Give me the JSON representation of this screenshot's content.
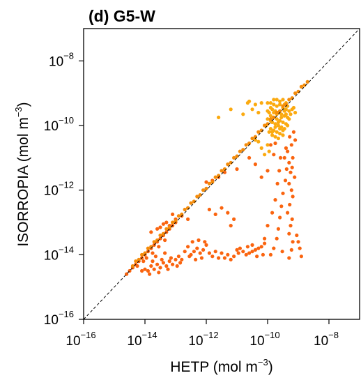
{
  "chart_data": {
    "type": "scatter",
    "title": "(d) G5-W",
    "xlabel": {
      "main": "HETP (mol m",
      "sup": "−3",
      "close": ")"
    },
    "ylabel": {
      "main": "ISORROPIA (mol m",
      "sup": "−3",
      "close": ")"
    },
    "x_scale": "log",
    "y_scale": "log",
    "xlim": [
      1e-16,
      1e-07
    ],
    "ylim": [
      1e-16,
      1e-07
    ],
    "x_ticks": [
      {
        "value": 1e-16,
        "base": "10",
        "exp": "−16"
      },
      {
        "value": 1e-14,
        "base": "10",
        "exp": "−14"
      },
      {
        "value": 1e-12,
        "base": "10",
        "exp": "−12"
      },
      {
        "value": 1e-10,
        "base": "10",
        "exp": "−10"
      },
      {
        "value": 1e-08,
        "base": "10",
        "exp": "−8"
      }
    ],
    "y_ticks": [
      {
        "value": 1e-16,
        "base": "10",
        "exp": "−16"
      },
      {
        "value": 1e-14,
        "base": "10",
        "exp": "−14"
      },
      {
        "value": 1e-12,
        "base": "10",
        "exp": "−12"
      },
      {
        "value": 1e-10,
        "base": "10",
        "exp": "−10"
      },
      {
        "value": 1e-08,
        "base": "10",
        "exp": "−8"
      }
    ],
    "reference_line": {
      "type": "1:1",
      "style": "dashed",
      "color": "#000000"
    },
    "grid": false,
    "colors": {
      "orange_red": "#fa640f",
      "light_orange": "#fbaa10",
      "amber": "#f58c0a"
    },
    "series": [
      {
        "color": "#fa640f",
        "points": [
          [
            -9.28,
            -10.35
          ],
          [
            -9.22,
            -10.6
          ],
          [
            -9.35,
            -10.8
          ],
          [
            -9.18,
            -11.0
          ],
          [
            -9.3,
            -11.15
          ],
          [
            -9.2,
            -11.3
          ],
          [
            -9.25,
            -11.45
          ],
          [
            -9.12,
            -11.6
          ],
          [
            -9.3,
            -11.8
          ],
          [
            -9.22,
            -12.0
          ],
          [
            -9.18,
            -12.2
          ],
          [
            -9.28,
            -12.45
          ],
          [
            -9.35,
            -12.7
          ],
          [
            -9.2,
            -12.9
          ],
          [
            -9.25,
            -13.1
          ],
          [
            -9.3,
            -13.35
          ],
          [
            -9.18,
            -13.6
          ],
          [
            -9.22,
            -13.85
          ],
          [
            -9.4,
            -10.7
          ],
          [
            -9.45,
            -11.0
          ],
          [
            -9.15,
            -10.2
          ],
          [
            -9.1,
            -10.45
          ],
          [
            -9.38,
            -11.35
          ],
          [
            -9.42,
            -11.7
          ],
          [
            -9.5,
            -12.1
          ],
          [
            -9.55,
            -12.5
          ],
          [
            -9.6,
            -12.85
          ],
          [
            -9.65,
            -13.2
          ],
          [
            -9.7,
            -13.5
          ],
          [
            -9.8,
            -13.8
          ],
          [
            -9.9,
            -14.0
          ],
          [
            -9.58,
            -11.0
          ],
          [
            -9.62,
            -11.4
          ],
          [
            -9.68,
            -11.8
          ],
          [
            -9.75,
            -12.3
          ],
          [
            -9.85,
            -12.7
          ],
          [
            -10.0,
            -13.1
          ],
          [
            -10.1,
            -13.5
          ],
          [
            -9.52,
            -13.9
          ],
          [
            -9.3,
            -14.1
          ],
          [
            -9.0,
            -13.6
          ],
          [
            -8.95,
            -13.8
          ],
          [
            -8.9,
            -14.05
          ],
          [
            -9.05,
            -13.4
          ],
          [
            -10.1,
            -13.65
          ],
          [
            -10.2,
            -13.75
          ],
          [
            -10.3,
            -13.8
          ],
          [
            -10.4,
            -13.85
          ],
          [
            -10.5,
            -13.9
          ],
          [
            -10.6,
            -13.95
          ],
          [
            -10.7,
            -14.0
          ],
          [
            -10.8,
            -13.9
          ],
          [
            -10.9,
            -13.8
          ],
          [
            -10.95,
            -13.95
          ],
          [
            -10.5,
            -13.7
          ],
          [
            -10.35,
            -14.05
          ],
          [
            -10.15,
            -14.0
          ],
          [
            -10.65,
            -13.75
          ],
          [
            -11.3,
            -12.7
          ],
          [
            -11.5,
            -12.55
          ],
          [
            -11.7,
            -12.75
          ],
          [
            -11.9,
            -12.6
          ],
          [
            -11.1,
            -12.9
          ],
          [
            -11.2,
            -13.1
          ],
          [
            -12.0,
            -13.7
          ],
          [
            -12.1,
            -13.85
          ],
          [
            -12.2,
            -13.95
          ],
          [
            -12.3,
            -13.8
          ],
          [
            -12.4,
            -13.9
          ],
          [
            -12.5,
            -14.0
          ],
          [
            -12.6,
            -13.75
          ],
          [
            -12.7,
            -13.9
          ],
          [
            -12.15,
            -14.1
          ],
          [
            -12.35,
            -14.15
          ],
          [
            -12.55,
            -14.05
          ],
          [
            -11.9,
            -13.95
          ],
          [
            -11.8,
            -14.05
          ],
          [
            -11.7,
            -13.9
          ],
          [
            -11.6,
            -14.1
          ],
          [
            -11.5,
            -13.95
          ],
          [
            -11.4,
            -14.1
          ],
          [
            -11.3,
            -14.0
          ],
          [
            -11.2,
            -14.15
          ],
          [
            -11.1,
            -14.05
          ],
          [
            -11.0,
            -13.85
          ],
          [
            -12.8,
            -14.15
          ],
          [
            -12.9,
            -14.05
          ],
          [
            -12.45,
            -13.6
          ],
          [
            -12.25,
            -13.55
          ],
          [
            -12.05,
            -13.6
          ],
          [
            -13.0,
            -12.9
          ],
          [
            -13.2,
            -13.1
          ],
          [
            -13.4,
            -13.05
          ],
          [
            -13.6,
            -13.2
          ],
          [
            -13.8,
            -13.3
          ],
          [
            -12.8,
            -12.8
          ],
          [
            -12.6,
            -12.9
          ],
          [
            -13.1,
            -12.75
          ],
          [
            -13.3,
            -13.0
          ],
          [
            -13.5,
            -13.15
          ],
          [
            -13.0,
            -14.15
          ],
          [
            -13.1,
            -14.3
          ],
          [
            -13.2,
            -14.2
          ],
          [
            -13.3,
            -14.35
          ],
          [
            -13.4,
            -14.25
          ],
          [
            -13.5,
            -14.4
          ],
          [
            -13.6,
            -14.3
          ],
          [
            -13.7,
            -14.45
          ],
          [
            -13.8,
            -14.35
          ],
          [
            -13.9,
            -14.5
          ],
          [
            -14.0,
            -14.45
          ],
          [
            -14.1,
            -14.5
          ],
          [
            -13.15,
            -14.1
          ],
          [
            -13.45,
            -14.15
          ],
          [
            -13.75,
            -14.2
          ],
          [
            -12.95,
            -14.35
          ],
          [
            -13.25,
            -14.45
          ],
          [
            -13.55,
            -14.55
          ],
          [
            -13.85,
            -14.6
          ],
          [
            -12.85,
            -14.25
          ],
          [
            -13.65,
            -14.05
          ],
          [
            -13.35,
            -13.95
          ],
          [
            -14.2,
            -14.2
          ],
          [
            -14.3,
            -14.3
          ],
          [
            -14.4,
            -14.4
          ],
          [
            -14.5,
            -14.5
          ],
          [
            -14.6,
            -14.6
          ],
          [
            -14.1,
            -14.1
          ],
          [
            -14.0,
            -14.0
          ],
          [
            -13.9,
            -13.9
          ],
          [
            -13.8,
            -13.8
          ],
          [
            -13.7,
            -13.7
          ],
          [
            -13.6,
            -13.6
          ],
          [
            -13.5,
            -13.5
          ],
          [
            -13.4,
            -13.4
          ],
          [
            -13.3,
            -13.3
          ],
          [
            -13.2,
            -13.2
          ],
          [
            -13.1,
            -13.1
          ],
          [
            -13.0,
            -13.0
          ],
          [
            -14.25,
            -14.35
          ],
          [
            -14.05,
            -14.2
          ],
          [
            -13.95,
            -14.1
          ],
          [
            -13.75,
            -13.95
          ],
          [
            -13.55,
            -13.75
          ],
          [
            -13.35,
            -13.55
          ],
          [
            -12.0,
            -11.75
          ],
          [
            -11.8,
            -11.7
          ],
          [
            -11.6,
            -11.6
          ],
          [
            -11.4,
            -11.45
          ],
          [
            -11.0,
            -11.35
          ],
          [
            -10.6,
            -11.0
          ],
          [
            -10.4,
            -11.2
          ],
          [
            -10.2,
            -11.6
          ],
          [
            -10.0,
            -11.4
          ],
          [
            -9.9,
            -10.6
          ],
          [
            -9.8,
            -10.9
          ],
          [
            -9.75,
            -10.55
          ]
        ]
      },
      {
        "color": "#fbaa10",
        "points": [
          [
            -9.9,
            -9.3
          ],
          [
            -9.8,
            -9.35
          ],
          [
            -9.7,
            -9.4
          ],
          [
            -9.6,
            -9.35
          ],
          [
            -9.5,
            -9.45
          ],
          [
            -9.4,
            -9.5
          ],
          [
            -9.3,
            -9.55
          ],
          [
            -9.85,
            -9.5
          ],
          [
            -9.75,
            -9.55
          ],
          [
            -9.65,
            -9.6
          ],
          [
            -9.55,
            -9.65
          ],
          [
            -9.45,
            -9.7
          ],
          [
            -9.35,
            -9.75
          ],
          [
            -9.9,
            -9.7
          ],
          [
            -9.8,
            -9.75
          ],
          [
            -9.7,
            -9.8
          ],
          [
            -9.6,
            -9.85
          ],
          [
            -9.5,
            -9.9
          ],
          [
            -9.4,
            -9.95
          ],
          [
            -9.85,
            -9.9
          ],
          [
            -9.75,
            -9.95
          ],
          [
            -9.65,
            -10.0
          ],
          [
            -9.55,
            -10.05
          ],
          [
            -9.45,
            -10.1
          ],
          [
            -9.9,
            -10.1
          ],
          [
            -9.8,
            -10.15
          ],
          [
            -9.7,
            -10.2
          ],
          [
            -9.6,
            -10.25
          ],
          [
            -9.5,
            -10.3
          ],
          [
            -9.85,
            -10.3
          ],
          [
            -9.75,
            -10.35
          ],
          [
            -9.65,
            -10.4
          ],
          [
            -9.95,
            -9.6
          ],
          [
            -10.0,
            -9.8
          ],
          [
            -10.05,
            -10.0
          ],
          [
            -9.95,
            -10.2
          ],
          [
            -9.3,
            -9.8
          ],
          [
            -9.35,
            -10.0
          ],
          [
            -9.25,
            -9.65
          ],
          [
            -9.2,
            -9.5
          ],
          [
            -9.6,
            -9.25
          ],
          [
            -9.7,
            -9.2
          ],
          [
            -9.5,
            -9.2
          ],
          [
            -9.4,
            -9.3
          ],
          [
            -9.8,
            -9.2
          ],
          [
            -9.9,
            -9.45
          ],
          [
            -10.0,
            -9.55
          ],
          [
            -9.45,
            -9.55
          ],
          [
            -9.55,
            -9.75
          ],
          [
            -9.65,
            -9.9
          ],
          [
            -9.75,
            -10.05
          ],
          [
            -9.85,
            -10.2
          ],
          [
            -9.4,
            -9.65
          ],
          [
            -9.5,
            -10.15
          ],
          [
            -9.6,
            -10.1
          ],
          [
            -9.7,
            -9.65
          ],
          [
            -9.8,
            -9.6
          ],
          [
            -9.9,
            -9.85
          ],
          [
            -9.35,
            -9.4
          ],
          [
            -9.45,
            -9.35
          ],
          [
            -10.6,
            -9.25
          ],
          [
            -10.65,
            -9.3
          ],
          [
            -10.4,
            -9.35
          ],
          [
            -10.2,
            -9.3
          ],
          [
            -10.0,
            -9.3
          ],
          [
            -10.5,
            -9.5
          ],
          [
            -10.3,
            -9.6
          ],
          [
            -11.6,
            -9.75
          ],
          [
            -11.2,
            -9.5
          ],
          [
            -10.8,
            -9.65
          ],
          [
            -9.15,
            -9.45
          ],
          [
            -9.1,
            -9.6
          ],
          [
            -10.3,
            -10.5
          ],
          [
            -10.0,
            -10.6
          ],
          [
            -9.95,
            -10.8
          ],
          [
            -10.1,
            -10.9
          ],
          [
            -10.2,
            -10.7
          ],
          [
            -10.4,
            -10.45
          ]
        ]
      },
      {
        "color": "#f58c0a",
        "points": [
          [
            -14.4,
            -14.35
          ],
          [
            -14.2,
            -14.15
          ],
          [
            -14.0,
            -13.95
          ],
          [
            -13.8,
            -13.75
          ],
          [
            -13.6,
            -13.55
          ],
          [
            -13.4,
            -13.35
          ],
          [
            -13.2,
            -13.15
          ],
          [
            -13.0,
            -12.95
          ],
          [
            -12.8,
            -12.75
          ],
          [
            -12.6,
            -12.55
          ],
          [
            -12.4,
            -12.35
          ],
          [
            -12.2,
            -12.15
          ],
          [
            -12.0,
            -11.95
          ],
          [
            -11.8,
            -11.75
          ],
          [
            -11.6,
            -11.55
          ],
          [
            -11.4,
            -11.35
          ],
          [
            -11.2,
            -11.15
          ],
          [
            -11.0,
            -10.95
          ],
          [
            -10.8,
            -10.75
          ],
          [
            -10.6,
            -10.55
          ],
          [
            -10.4,
            -10.35
          ],
          [
            -10.2,
            -10.15
          ],
          [
            -10.0,
            -9.95
          ],
          [
            -9.8,
            -9.75
          ],
          [
            -9.6,
            -9.55
          ],
          [
            -9.4,
            -9.35
          ],
          [
            -9.2,
            -9.15
          ],
          [
            -9.0,
            -8.95
          ],
          [
            -8.8,
            -8.75
          ],
          [
            -8.7,
            -8.65
          ],
          [
            -14.3,
            -14.2
          ],
          [
            -14.1,
            -14.0
          ],
          [
            -13.9,
            -13.8
          ],
          [
            -13.7,
            -13.6
          ],
          [
            -13.5,
            -13.4
          ],
          [
            -13.3,
            -13.2
          ],
          [
            -13.1,
            -13.0
          ],
          [
            -12.9,
            -12.8
          ],
          [
            -12.7,
            -12.6
          ],
          [
            -12.5,
            -12.4
          ],
          [
            -12.3,
            -12.2
          ],
          [
            -12.1,
            -12.0
          ],
          [
            -11.9,
            -11.8
          ],
          [
            -11.7,
            -11.6
          ],
          [
            -11.5,
            -11.4
          ],
          [
            -11.3,
            -11.2
          ],
          [
            -11.1,
            -11.0
          ],
          [
            -10.9,
            -10.8
          ],
          [
            -10.7,
            -10.6
          ],
          [
            -10.5,
            -10.4
          ],
          [
            -10.3,
            -10.2
          ],
          [
            -10.1,
            -10.0
          ],
          [
            -9.9,
            -9.8
          ],
          [
            -9.7,
            -9.6
          ],
          [
            -9.5,
            -9.4
          ],
          [
            -9.3,
            -9.2
          ],
          [
            -9.1,
            -9.0
          ],
          [
            -8.9,
            -8.8
          ]
        ]
      }
    ]
  }
}
